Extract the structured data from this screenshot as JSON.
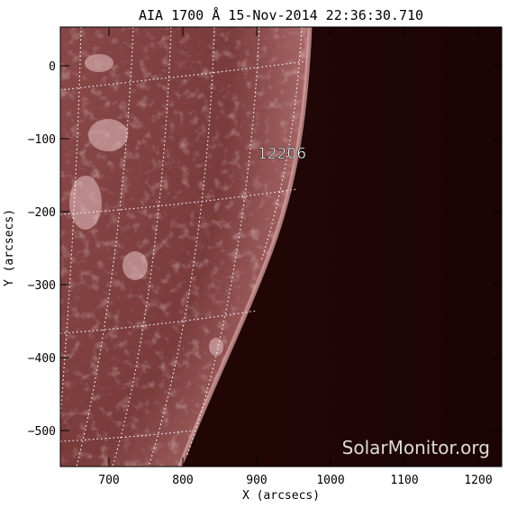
{
  "title": "AIA 1700 Å 15-Nov-2014 22:36:30.710",
  "xlabel": "X (arcsecs)",
  "ylabel": "Y (arcsecs)",
  "x_ticks": [
    "700",
    "800",
    "900",
    "1000",
    "1100",
    "1200"
  ],
  "y_ticks": [
    "0",
    "−100",
    "−200",
    "−300",
    "−400",
    "−500"
  ],
  "annotation": "12206",
  "watermark": "SolarMonitor.org",
  "colors": {
    "disk": "#7a3c3c",
    "disk_bright": "#c88a8a",
    "limb": "#d9a3a3",
    "space": "#1e0505",
    "grid": "#ffffff"
  }
}
